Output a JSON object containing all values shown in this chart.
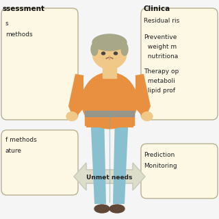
{
  "bg_color": "#f5f5f5",
  "box_color": "#fdf8e4",
  "box_edge_color": "#b8b090",
  "left_title": "ssessment",
  "right_title": "Clinica",
  "left_top_lines": [
    "s",
    "methods"
  ],
  "left_bottom_lines": [
    "f methods",
    "ature"
  ],
  "right_top_lines": [
    "Residual ris",
    "",
    "Preventive",
    "  weight m",
    "  nutritiona",
    "",
    "Therapy op",
    "  metaboli",
    "  lipid prof"
  ],
  "right_bottom_lines": [
    "Prediction",
    "Monitoring"
  ],
  "unmet_needs_label": "Unmet needs",
  "arrow_color": "#ccccbb",
  "arrow_fill": "#ddddcc",
  "person_shirt_color": "#e89040",
  "person_pants_color": "#88c0d0",
  "person_pants_dark": "#70a8b8",
  "person_skin_color": "#f0c888",
  "person_skin_dark": "#d8a868",
  "person_hair_color": "#a8a888",
  "person_shoe_color": "#604838"
}
